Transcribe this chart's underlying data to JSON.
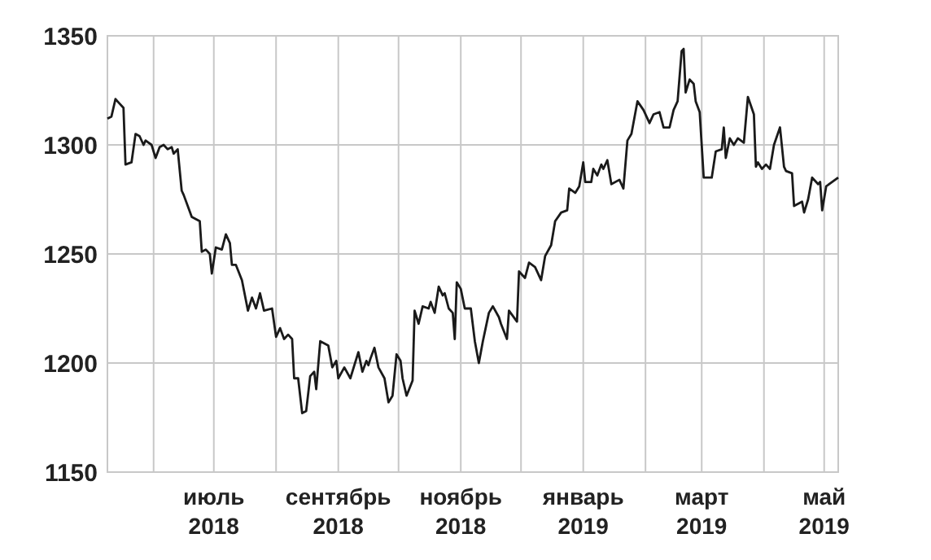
{
  "chart_data": {
    "type": "line",
    "grid": true,
    "line_style": "solid",
    "xlim": [
      "2018-05-09",
      "2019-05-08"
    ],
    "xticks": [
      {
        "value": "2018-06-01",
        "label": null
      },
      {
        "value": "2018-07-01",
        "label": "июль\n2018"
      },
      {
        "value": "2018-08-01",
        "label": null
      },
      {
        "value": "2018-09-01",
        "label": "сентябрь\n2018"
      },
      {
        "value": "2018-10-01",
        "label": null
      },
      {
        "value": "2018-11-01",
        "label": "ноябрь\n2018"
      },
      {
        "value": "2018-12-01",
        "label": null
      },
      {
        "value": "2019-01-01",
        "label": "январь\n2019"
      },
      {
        "value": "2019-02-01",
        "label": null
      },
      {
        "value": "2019-03-01",
        "label": "март\n2019"
      },
      {
        "value": "2019-04-01",
        "label": null
      },
      {
        "value": "2019-05-01",
        "label": "май\n2019"
      }
    ],
    "ylim": [
      1150,
      1350
    ],
    "yticks": [
      1150,
      1200,
      1250,
      1300,
      1350
    ],
    "series": [
      {
        "color": "#1a1a1a",
        "x": [
          "2018-05-09",
          "2018-05-11",
          "2018-05-13",
          "2018-05-15",
          "2018-05-17",
          "2018-05-18",
          "2018-05-21",
          "2018-05-23",
          "2018-05-25",
          "2018-05-27",
          "2018-05-28",
          "2018-05-31",
          "2018-06-02",
          "2018-06-04",
          "2018-06-06",
          "2018-06-08",
          "2018-06-10",
          "2018-06-11",
          "2018-06-13",
          "2018-06-15",
          "2018-06-16",
          "2018-06-20",
          "2018-06-24",
          "2018-06-25",
          "2018-06-27",
          "2018-06-29",
          "2018-06-30",
          "2018-07-02",
          "2018-07-05",
          "2018-07-07",
          "2018-07-09",
          "2018-07-10",
          "2018-07-12",
          "2018-07-15",
          "2018-07-18",
          "2018-07-20",
          "2018-07-22",
          "2018-07-24",
          "2018-07-26",
          "2018-07-30",
          "2018-08-01",
          "2018-08-03",
          "2018-08-05",
          "2018-08-07",
          "2018-08-09",
          "2018-08-10",
          "2018-08-12",
          "2018-08-14",
          "2018-08-16",
          "2018-08-18",
          "2018-08-20",
          "2018-08-21",
          "2018-08-23",
          "2018-08-27",
          "2018-08-29",
          "2018-08-31",
          "2018-09-01",
          "2018-09-04",
          "2018-09-07",
          "2018-09-11",
          "2018-09-13",
          "2018-09-15",
          "2018-09-16",
          "2018-09-17",
          "2018-09-19",
          "2018-09-21",
          "2018-09-24",
          "2018-09-26",
          "2018-09-28",
          "2018-09-30",
          "2018-10-02",
          "2018-10-03",
          "2018-10-05",
          "2018-10-08",
          "2018-10-09",
          "2018-10-11",
          "2018-10-13",
          "2018-10-16",
          "2018-10-17",
          "2018-10-19",
          "2018-10-21",
          "2018-10-23",
          "2018-10-24",
          "2018-10-26",
          "2018-10-28",
          "2018-10-29",
          "2018-10-30",
          "2018-11-01",
          "2018-11-03",
          "2018-11-06",
          "2018-11-08",
          "2018-11-10",
          "2018-11-12",
          "2018-11-15",
          "2018-11-17",
          "2018-11-20",
          "2018-11-21",
          "2018-11-24",
          "2018-11-25",
          "2018-11-29",
          "2018-11-30",
          "2018-12-03",
          "2018-12-05",
          "2018-12-08",
          "2018-12-11",
          "2018-12-13",
          "2018-12-16",
          "2018-12-18",
          "2018-12-21",
          "2018-12-24",
          "2018-12-25",
          "2018-12-28",
          "2018-12-30",
          "2019-01-01",
          "2019-01-02",
          "2019-01-05",
          "2019-01-06",
          "2019-01-08",
          "2019-01-10",
          "2019-01-11",
          "2019-01-13",
          "2019-01-15",
          "2019-01-19",
          "2019-01-21",
          "2019-01-23",
          "2019-01-25",
          "2019-01-28",
          "2019-01-31",
          "2019-02-03",
          "2019-02-05",
          "2019-02-08",
          "2019-02-10",
          "2019-02-13",
          "2019-02-15",
          "2019-02-17",
          "2019-02-19",
          "2019-02-20",
          "2019-02-21",
          "2019-02-23",
          "2019-02-25",
          "2019-02-26",
          "2019-02-28",
          "2019-03-02",
          "2019-03-06",
          "2019-03-08",
          "2019-03-11",
          "2019-03-12",
          "2019-03-13",
          "2019-03-15",
          "2019-03-17",
          "2019-03-19",
          "2019-03-22",
          "2019-03-24",
          "2019-03-27",
          "2019-03-28",
          "2019-03-29",
          "2019-03-31",
          "2019-04-02",
          "2019-04-04",
          "2019-04-06",
          "2019-04-09",
          "2019-04-11",
          "2019-04-12",
          "2019-04-15",
          "2019-04-16",
          "2019-04-20",
          "2019-04-21",
          "2019-04-23",
          "2019-04-25",
          "2019-04-28",
          "2019-04-29",
          "2019-04-30",
          "2019-05-02",
          "2019-05-08"
        ],
        "values": [
          1312,
          1313,
          1321,
          1319,
          1317,
          1291,
          1292,
          1305,
          1304,
          1300,
          1302,
          1300,
          1294,
          1299,
          1300,
          1298,
          1299,
          1296,
          1298,
          1279,
          1277,
          1267,
          1265,
          1251,
          1252,
          1250,
          1241,
          1253,
          1252,
          1259,
          1255,
          1245,
          1245,
          1238,
          1224,
          1230,
          1225,
          1232,
          1224,
          1225,
          1212,
          1216,
          1211,
          1213,
          1211,
          1193,
          1193,
          1177,
          1178,
          1194,
          1196,
          1188,
          1210,
          1208,
          1198,
          1201,
          1193,
          1198,
          1193,
          1205,
          1196,
          1201,
          1199,
          1202,
          1207,
          1198,
          1193,
          1182,
          1185,
          1204,
          1201,
          1193,
          1185,
          1192,
          1224,
          1218,
          1226,
          1225,
          1228,
          1223,
          1235,
          1231,
          1232,
          1225,
          1223,
          1211,
          1237,
          1234,
          1225,
          1225,
          1210,
          1200,
          1210,
          1223,
          1226,
          1221,
          1218,
          1211,
          1224,
          1219,
          1242,
          1239,
          1246,
          1244,
          1238,
          1249,
          1254,
          1265,
          1269,
          1270,
          1280,
          1278,
          1281,
          1292,
          1283,
          1283,
          1289,
          1286,
          1291,
          1289,
          1293,
          1282,
          1284,
          1280,
          1302,
          1305,
          1320,
          1316,
          1310,
          1314,
          1315,
          1308,
          1308,
          1316,
          1320,
          1343,
          1344,
          1324,
          1330,
          1328,
          1320,
          1315,
          1285,
          1285,
          1297,
          1298,
          1308,
          1294,
          1303,
          1300,
          1303,
          1301,
          1322,
          1314,
          1290,
          1292,
          1289,
          1291,
          1289,
          1300,
          1308,
          1290,
          1288,
          1287,
          1272,
          1274,
          1269,
          1275,
          1285,
          1282,
          1283,
          1270,
          1281,
          1285
        ]
      }
    ]
  }
}
